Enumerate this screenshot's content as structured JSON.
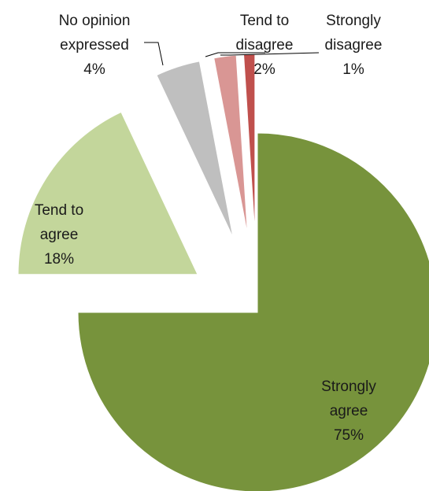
{
  "chart_data": {
    "type": "pie",
    "title": "",
    "slices": [
      {
        "label_lines": [
          "Strongly",
          "agree"
        ],
        "value": 75,
        "value_label": "75%",
        "color": "#77933C"
      },
      {
        "label_lines": [
          "Tend to",
          "agree"
        ],
        "value": 18,
        "value_label": "18%",
        "color": "#C3D69B"
      },
      {
        "label_lines": [
          "No opinion",
          "expressed"
        ],
        "value": 4,
        "value_label": "4%",
        "color": "#BFBFBF"
      },
      {
        "label_lines": [
          "Tend to",
          "disagree"
        ],
        "value": 2,
        "value_label": "2%",
        "color": "#D99694"
      },
      {
        "label_lines": [
          "Strongly",
          "disagree"
        ],
        "value": 1,
        "value_label": "1%",
        "color": "#C0504D"
      }
    ]
  }
}
